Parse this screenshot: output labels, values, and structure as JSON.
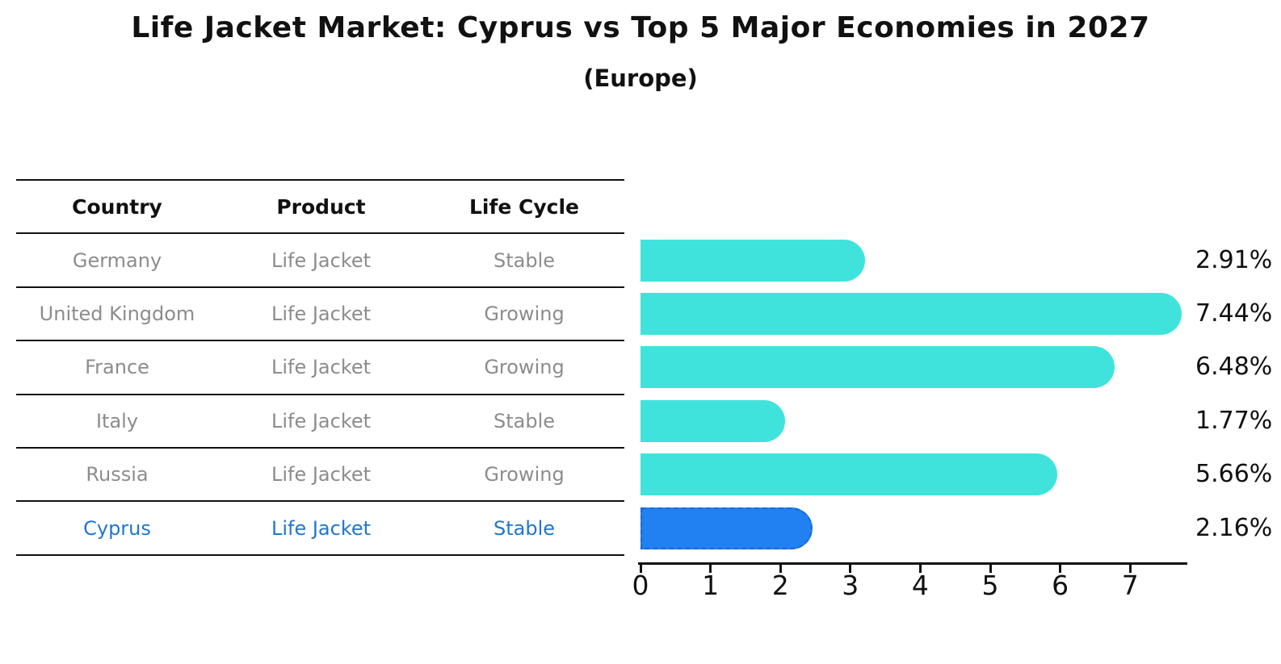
{
  "title": "Life Jacket Market: Cyprus vs Top 5 Major Economies in 2027",
  "subtitle": "(Europe)",
  "table": {
    "headers": [
      "Country",
      "Product",
      "Life Cycle"
    ],
    "rows": [
      {
        "country": "Germany",
        "product": "Life Jacket",
        "life_cycle": "Stable",
        "highlight": false
      },
      {
        "country": "United Kingdom",
        "product": "Life Jacket",
        "life_cycle": "Growing",
        "highlight": false
      },
      {
        "country": "France",
        "product": "Life Jacket",
        "life_cycle": "Growing",
        "highlight": false
      },
      {
        "country": "Italy",
        "product": "Life Jacket",
        "life_cycle": "Stable",
        "highlight": false
      },
      {
        "country": "Russia",
        "product": "Life Jacket",
        "life_cycle": "Growing",
        "highlight": false
      },
      {
        "country": "Cyprus",
        "product": "Life Jacket",
        "life_cycle": "Stable",
        "highlight": true
      }
    ]
  },
  "chart_data": {
    "type": "bar",
    "orientation": "horizontal",
    "title": "Life Jacket Market: Cyprus vs Top 5 Major Economies in 2027",
    "subtitle": "(Europe)",
    "categories": [
      "Germany",
      "United Kingdom",
      "France",
      "Italy",
      "Russia",
      "Cyprus"
    ],
    "values": [
      2.91,
      7.44,
      6.48,
      1.77,
      5.66,
      2.16
    ],
    "labels": [
      "2.91%",
      "7.44%",
      "6.48%",
      "1.77%",
      "5.66%",
      "2.16%"
    ],
    "highlight_index": 5,
    "xticks": [
      0,
      1,
      2,
      3,
      4,
      5,
      6,
      7
    ],
    "xlim": [
      0,
      7.82
    ],
    "grid": false,
    "legend": false,
    "colors": {
      "bar": "#40e3dc",
      "highlight_bar": "#2180f2",
      "highlight_border": "#1b66cc",
      "highlight_text": "#2077cc",
      "row_text": "#8c8c8c",
      "axis": "#111111"
    }
  }
}
